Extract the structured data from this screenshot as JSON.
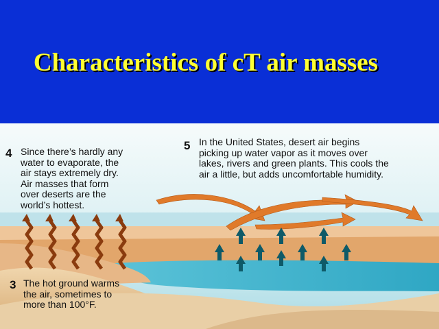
{
  "title": "Characteristics of cT air masses",
  "steps": {
    "s3": {
      "number": "3",
      "lines": [
        "The hot ground warms",
        "the air, sometimes to",
        "more than 100°F."
      ]
    },
    "s4": {
      "number": "4",
      "lines": [
        "Since there’s hardly any",
        "water to evaporate, the",
        "air stays extremely dry.",
        "Air masses that form",
        "over deserts are the",
        "world’s hottest."
      ]
    },
    "s5": {
      "number": "5",
      "lines": [
        "In the United States, desert air begins",
        "picking up water vapor as it moves over",
        "lakes, rivers and green plants. This cools the",
        "air a little, but adds uncomfortable humidity."
      ]
    }
  },
  "colors": {
    "background": "#0a2fd6",
    "title": "#ffff33",
    "sky": "#cfe9ef",
    "water": "#3fb6cf",
    "sand": "#e8c79a",
    "heat_arrow": "#8a3b0e",
    "flow_arrow": "#e07a2a",
    "vapor_arrow": "#0e5a68"
  }
}
